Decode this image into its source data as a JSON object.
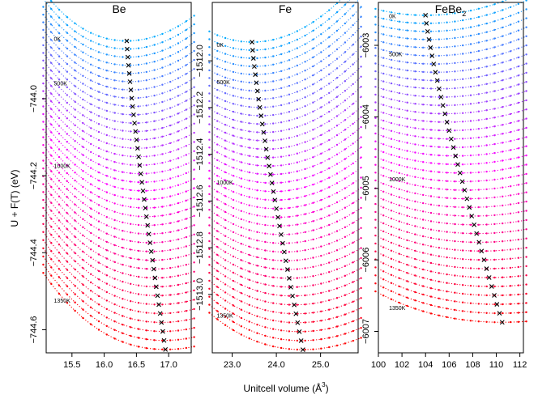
{
  "chart_data": {
    "type": "line",
    "xlabel": "Unitcell volume (Å",
    "xlabel_sup": "3",
    "xlabel_end": ")",
    "ylabel": "U + F(T)  (eV)",
    "temperature_colors": {
      "low": "#00aaff",
      "mid": "#ff00ff",
      "high": "#ff0000"
    },
    "panels": [
      {
        "title": "Be",
        "title_sub": "",
        "xlim": [
          15.1,
          17.35
        ],
        "ylim": [
          -744.66,
          -743.75
        ],
        "xticks": [
          15.5,
          16.0,
          16.5,
          17.0
        ],
        "xtick_labels": [
          "15.5",
          "16.0",
          "16.5",
          "17.0"
        ],
        "yticks": [
          -744.0,
          -744.2,
          -744.4,
          -744.6
        ],
        "ytick_labels": [
          "−744.0",
          "−744.2",
          "−744.4",
          "−744.6"
        ],
        "top": -743.85,
        "spacing": 0.021,
        "curvature": 0.06,
        "min_volume": [
          16.35,
          16.95
        ],
        "upturn": 0.5,
        "temp_labels": [
          {
            "text": "0K",
            "x": 15.22,
            "y": -743.85
          },
          {
            "text": "500K",
            "x": 15.22,
            "y": -743.965
          },
          {
            "text": "1000K",
            "x": 15.22,
            "y": -744.18
          },
          {
            "text": "1350K",
            "x": 15.22,
            "y": -744.53
          }
        ]
      },
      {
        "title": "Fe",
        "title_sub": "",
        "xlim": [
          22.55,
          25.85
        ],
        "ylim": [
          -1513.25,
          -1511.75
        ],
        "xticks": [
          23.0,
          24.0,
          25.0
        ],
        "xtick_labels": [
          "23.0",
          "24.0",
          "25.0"
        ],
        "yticks": [
          -1512.0,
          -1512.2,
          -1512.4,
          -1512.6,
          -1512.8,
          -1513.0
        ],
        "ytick_labels": [
          "−1512.0",
          "−1512.2",
          "−1512.4",
          "−1512.6",
          "−1512.8",
          "−1513.0"
        ],
        "top": -1511.92,
        "spacing": 0.0345,
        "curvature": 0.045,
        "min_volume": [
          23.45,
          24.6
        ],
        "upturn": 0.32,
        "temp_labels": [
          {
            "text": "0K",
            "x": 22.65,
            "y": -1511.94
          },
          {
            "text": "500K",
            "x": 22.65,
            "y": -1512.1
          },
          {
            "text": "1000K",
            "x": 22.65,
            "y": -1512.53
          },
          {
            "text": "1350K",
            "x": 22.65,
            "y": -1513.1
          }
        ]
      },
      {
        "title": "FeBe",
        "title_sub": "2",
        "xlim": [
          100.0,
          112.3
        ],
        "ylim": [
          -6007.3,
          -6002.4
        ],
        "xticks": [
          100,
          102,
          104,
          106,
          108,
          110,
          112
        ],
        "xtick_labels": [
          "100",
          "102",
          "104",
          "106",
          "108",
          "110",
          "112"
        ],
        "yticks": [
          -6003,
          -6004,
          -6005,
          -6006,
          -6007
        ],
        "ytick_labels": [
          "−6003",
          "−6004",
          "−6005",
          "−6006",
          "−6007"
        ],
        "top": -6002.58,
        "spacing": 0.1125,
        "curvature": 0.0045,
        "min_volume": [
          104.0,
          110.5
        ],
        "upturn": 0.32,
        "temp_labels": [
          {
            "text": "0K",
            "x": 100.9,
            "y": -6002.62
          },
          {
            "text": "500K",
            "x": 100.9,
            "y": -6003.15
          },
          {
            "text": "1000K",
            "x": 100.9,
            "y": -6004.9
          },
          {
            "text": "1350K",
            "x": 100.9,
            "y": -6006.7
          }
        ]
      }
    ],
    "n_curves": 37,
    "n_points": 20
  }
}
